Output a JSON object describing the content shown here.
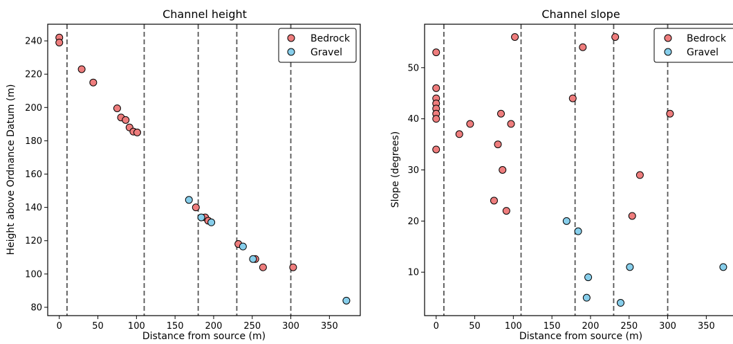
{
  "chart_data": [
    {
      "type": "scatter",
      "title": "Channel height",
      "xlabel": "Distance from source (m)",
      "ylabel": "Height above Ordnance Datum (m)",
      "xlim": [
        -15,
        390
      ],
      "ylim": [
        75,
        250
      ],
      "xticks": [
        0,
        50,
        100,
        150,
        200,
        250,
        300,
        350
      ],
      "yticks": [
        80,
        100,
        120,
        140,
        160,
        180,
        200,
        220,
        240
      ],
      "vlines": [
        10,
        110,
        180,
        230,
        300
      ],
      "grid": false,
      "legend_position": "top-right",
      "series": [
        {
          "name": "Bedrock",
          "color": "#ee7d7d",
          "points": [
            [
              0,
              242
            ],
            [
              0,
              239
            ],
            [
              29,
              223
            ],
            [
              44,
              215
            ],
            [
              75,
              199.5
            ],
            [
              80,
              194
            ],
            [
              86,
              192.5
            ],
            [
              91,
              188
            ],
            [
              96,
              185.5
            ],
            [
              101,
              185
            ],
            [
              177,
              140
            ],
            [
              189,
              134
            ],
            [
              193,
              132
            ],
            [
              232,
              118
            ],
            [
              254,
              109
            ],
            [
              264,
              104
            ],
            [
              303,
              104
            ]
          ]
        },
        {
          "name": "Gravel",
          "color": "#87ceeb",
          "points": [
            [
              168,
              144.5
            ],
            [
              184,
              134
            ],
            [
              197,
              131
            ],
            [
              238,
              116.5
            ],
            [
              251,
              109
            ],
            [
              372,
              84
            ]
          ]
        }
      ]
    },
    {
      "type": "scatter",
      "title": "Channel slope",
      "xlabel": "Distance from source (m)",
      "ylabel": "Slope (degrees)",
      "xlim": [
        -15,
        390
      ],
      "ylim": [
        1.5,
        58.5
      ],
      "xticks": [
        0,
        50,
        100,
        150,
        200,
        250,
        300,
        350
      ],
      "yticks": [
        10,
        20,
        30,
        40,
        50
      ],
      "vlines": [
        10,
        110,
        180,
        230,
        300
      ],
      "grid": false,
      "legend_position": "top-right",
      "series": [
        {
          "name": "Bedrock",
          "color": "#ee7d7d",
          "points": [
            [
              0,
              53
            ],
            [
              0,
              46
            ],
            [
              0,
              44
            ],
            [
              0,
              43
            ],
            [
              0,
              42
            ],
            [
              0,
              41
            ],
            [
              0,
              40
            ],
            [
              0,
              34
            ],
            [
              30,
              37
            ],
            [
              44,
              39
            ],
            [
              75,
              24
            ],
            [
              80,
              35
            ],
            [
              84,
              41
            ],
            [
              86,
              30
            ],
            [
              91,
              22
            ],
            [
              97,
              39
            ],
            [
              102,
              56
            ],
            [
              177,
              44
            ],
            [
              190,
              54
            ],
            [
              232,
              56
            ],
            [
              254,
              21
            ],
            [
              264,
              29
            ],
            [
              303,
              41
            ]
          ]
        },
        {
          "name": "Gravel",
          "color": "#87ceeb",
          "points": [
            [
              169,
              20
            ],
            [
              184,
              18
            ],
            [
              195,
              5
            ],
            [
              197,
              9
            ],
            [
              239,
              4
            ],
            [
              251,
              11
            ],
            [
              372,
              11
            ]
          ]
        }
      ]
    }
  ]
}
